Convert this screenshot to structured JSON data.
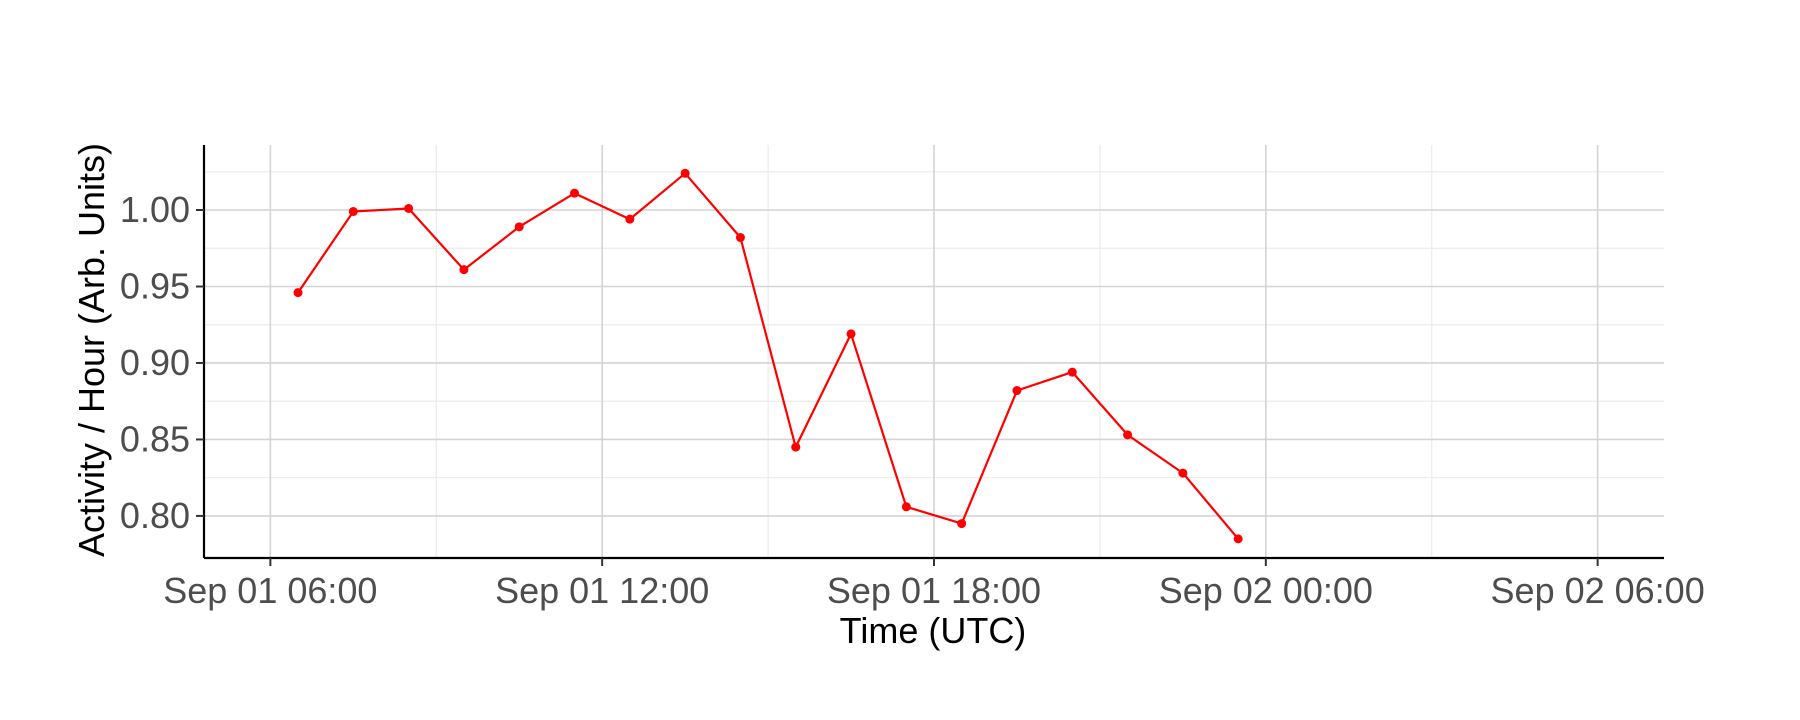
{
  "chart_data": {
    "type": "line",
    "title": "",
    "xlabel": "Time (UTC)",
    "ylabel": "Activity / Hour (Arb. Units)",
    "x_ticks": [
      "Sep 01 06:00",
      "Sep 01 12:00",
      "Sep 01 18:00",
      "Sep 02 00:00",
      "Sep 02 06:00"
    ],
    "x_tick_hours": [
      6,
      12,
      18,
      24,
      30
    ],
    "x_minor_hours": [
      9,
      15,
      21,
      27
    ],
    "xlim_hours": [
      4.8,
      31.2
    ],
    "y_ticks": [
      0.8,
      0.85,
      0.9,
      0.95,
      1.0
    ],
    "y_minor": [
      0.825,
      0.875,
      0.925,
      0.975,
      1.025
    ],
    "ylim": [
      0.7725,
      1.0425
    ],
    "grid": true,
    "line_color": "#ff0000",
    "series": [
      {
        "x_hours": [
          6.5,
          7.5,
          8.5,
          9.5,
          10.5,
          11.5,
          12.5,
          13.5,
          14.5,
          15.5,
          16.5,
          17.5,
          18.5,
          19.5,
          20.5,
          21.5,
          22.5,
          23.5
        ],
        "values": [
          0.946,
          0.999,
          1.001,
          0.961,
          0.989,
          1.011,
          0.994,
          1.024,
          0.982,
          0.845,
          0.919,
          0.806,
          0.795,
          0.882,
          0.894,
          0.853,
          0.828,
          0.785
        ]
      }
    ]
  }
}
